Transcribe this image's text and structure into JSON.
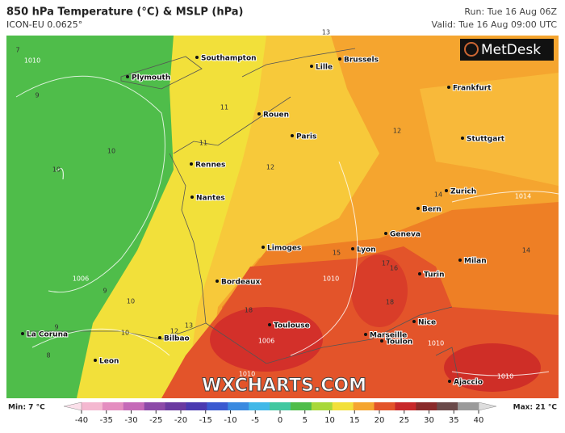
{
  "header": {
    "title": "850 hPa Temperature (°C) & MSLP (hPa)",
    "model": "ICON-EU 0.0625°",
    "run": "Run: Tue 16 Aug 06Z",
    "valid": "Valid: Tue 16 Aug 09:00 UTC",
    "logo": "MetDesk"
  },
  "map": {
    "watermark": "WXCHARTS.COM",
    "cities": [
      "Southampton",
      "Plymouth",
      "Lille",
      "Brussels",
      "Frankfurt",
      "Rouen",
      "Paris",
      "Stuttgart",
      "Rennes",
      "Nantes",
      "Zurich",
      "Bern",
      "Geneva",
      "Limoges",
      "Lyon",
      "Milan",
      "Turin",
      "Bordeaux",
      "Nice",
      "Toulouse",
      "Marseille",
      "Toulon",
      "La Coruna",
      "Bilbao",
      "Leon",
      "Ajaccio"
    ],
    "contour_labels": [
      "7",
      "1010",
      "9",
      "10",
      "10",
      "11",
      "11",
      "12",
      "13",
      "12",
      "14",
      "1014",
      "14",
      "15",
      "16",
      "17",
      "18",
      "18",
      "1010",
      "1006",
      "1010",
      "1010",
      "9",
      "10",
      "10",
      "12",
      "13",
      "1006",
      "9",
      "8",
      "1010"
    ]
  },
  "legend": {
    "min": "Min: 7 °C",
    "max": "Max: 21 °C",
    "ticks": [
      -40,
      -35,
      -30,
      -25,
      -20,
      -15,
      -10,
      -5,
      0,
      5,
      10,
      15,
      20,
      25,
      30,
      35,
      40
    ]
  }
}
